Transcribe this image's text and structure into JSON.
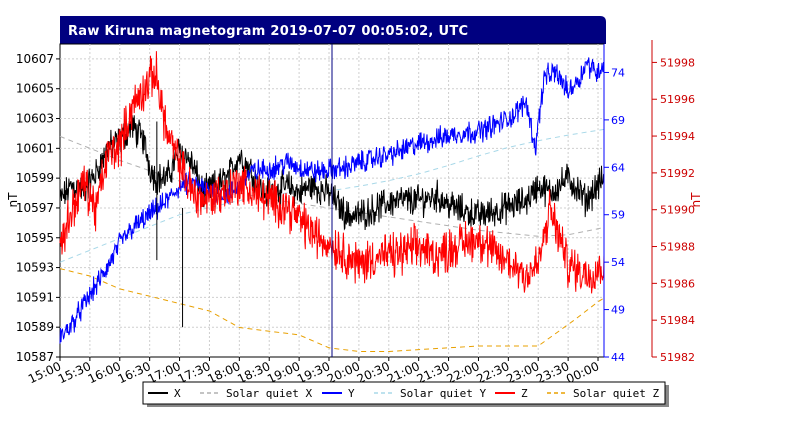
{
  "chart_data": {
    "type": "line",
    "title": "Raw Kiruna magnetogram 2019-07-07 00:05:02, UTC",
    "colors": {
      "title_bar": "#000080",
      "x": "#000000",
      "y": "#0000ff",
      "z": "#ff0000",
      "quiet_x": "#b0b0b0",
      "quiet_y": "#a8d8e8",
      "quiet_z": "#e8a000",
      "blue_axis": "#0000ff",
      "red_axis": "#cc0000"
    },
    "x_axis": {
      "ticks": [
        "15:00",
        "15:30",
        "16:00",
        "16:30",
        "17:00",
        "17:30",
        "18:00",
        "18:30",
        "19:00",
        "19:30",
        "20:00",
        "20:30",
        "21:00",
        "21:30",
        "22:00",
        "22:30",
        "23:00",
        "23:30",
        "00:00"
      ],
      "range_hours": [
        15.0,
        24.1
      ]
    },
    "left_axis": {
      "label": "nT",
      "ticks": [
        "10587",
        "10589",
        "10591",
        "10593",
        "10595",
        "10597",
        "10599",
        "10601",
        "10603",
        "10605",
        "10607"
      ],
      "range": [
        10587,
        10608
      ]
    },
    "mid_axis": {
      "ticks": [
        "44",
        "49",
        "54",
        "59",
        "64",
        "69",
        "74"
      ],
      "range": [
        44,
        77
      ]
    },
    "right_axis": {
      "label": "nT",
      "ticks": [
        "51982",
        "51984",
        "51986",
        "51988",
        "51990",
        "51992",
        "51994",
        "51996",
        "51998"
      ],
      "range": [
        51982,
        51999
      ]
    },
    "legend": [
      "X",
      "Solar quiet X",
      "Y",
      "Solar quiet Y",
      "Z",
      "Solar quiet Z"
    ],
    "series": [
      {
        "name": "X",
        "axis": "left",
        "noise": 0.8,
        "x": [
          15.0,
          15.2,
          15.4,
          15.6,
          15.8,
          16.0,
          16.2,
          16.4,
          16.5,
          16.6,
          16.8,
          17.0,
          17.2,
          17.4,
          17.6,
          17.8,
          18.0,
          18.2,
          18.4,
          18.6,
          18.8,
          19.0,
          19.2,
          19.5,
          19.8,
          20.0,
          20.3,
          20.6,
          21.0,
          21.3,
          21.6,
          22.0,
          22.3,
          22.6,
          22.8,
          23.0,
          23.2,
          23.5,
          23.8,
          24.1
        ],
        "values": [
          10597.5,
          10598.5,
          10598.2,
          10599.3,
          10601.0,
          10601.5,
          10602.5,
          10601.5,
          10599.8,
          10599.0,
          10599.0,
          10601.0,
          10600.0,
          10598.0,
          10598.5,
          10599.0,
          10600.5,
          10599.5,
          10598.0,
          10598.2,
          10598.5,
          10598.0,
          10598.5,
          10598.0,
          10596.5,
          10596.5,
          10597.0,
          10597.5,
          10597.5,
          10597.8,
          10597.0,
          10596.5,
          10596.8,
          10597.2,
          10597.5,
          10598.5,
          10598.0,
          10599.0,
          10597.5,
          10599.0
        ]
      },
      {
        "name": "Y",
        "axis": "mid",
        "noise": 0.9,
        "x": [
          15.0,
          15.2,
          15.5,
          15.8,
          16.0,
          16.2,
          16.5,
          16.8,
          17.0,
          17.2,
          17.5,
          17.8,
          18.0,
          18.2,
          18.5,
          18.8,
          19.0,
          19.3,
          19.6,
          19.8,
          20.0,
          20.3,
          20.6,
          21.0,
          21.3,
          21.6,
          22.0,
          22.3,
          22.6,
          22.8,
          22.95,
          23.1,
          23.3,
          23.5,
          23.7,
          23.8,
          24.0,
          24.1
        ],
        "values": [
          46.0,
          47.5,
          50.5,
          53.5,
          56.0,
          57.5,
          59.0,
          60.5,
          62.0,
          62.3,
          61.5,
          61.0,
          62.0,
          63.5,
          63.8,
          64.5,
          64.0,
          63.5,
          63.8,
          64.0,
          64.5,
          65.0,
          65.5,
          66.5,
          67.0,
          67.5,
          67.8,
          68.5,
          69.5,
          71.0,
          66.0,
          73.5,
          74.0,
          72.0,
          73.5,
          75.0,
          74.0,
          75.0
        ]
      },
      {
        "name": "Z",
        "axis": "right",
        "noise": 0.9,
        "x": [
          15.0,
          15.2,
          15.4,
          15.6,
          15.8,
          16.0,
          16.2,
          16.4,
          16.6,
          16.8,
          17.0,
          17.2,
          17.4,
          17.6,
          17.8,
          18.0,
          18.2,
          18.5,
          18.8,
          19.0,
          19.3,
          19.6,
          19.8,
          20.0,
          20.3,
          20.6,
          21.0,
          21.3,
          21.6,
          22.0,
          22.3,
          22.6,
          22.8,
          23.0,
          23.2,
          23.5,
          23.8,
          24.1
        ],
        "values": [
          51988.0,
          51990.0,
          51991.5,
          51990.0,
          51993.0,
          51993.5,
          51995.5,
          51996.5,
          51997.5,
          51994.0,
          51992.5,
          51991.0,
          51990.5,
          51990.8,
          51991.0,
          51991.5,
          51991.0,
          51990.5,
          51990.2,
          51989.5,
          51988.5,
          51988.0,
          51987.5,
          51987.0,
          51987.5,
          51987.5,
          51988.0,
          51987.5,
          51988.0,
          51988.5,
          51987.5,
          51987.0,
          51986.5,
          51987.0,
          51990.0,
          51987.0,
          51986.5,
          51987.0
        ]
      },
      {
        "name": "Solar quiet X",
        "axis": "left",
        "noise": 0,
        "x": [
          15.0,
          15.5,
          16.0,
          16.5,
          17.0,
          17.5,
          18.0,
          18.5,
          19.0,
          19.5,
          20.0,
          20.5,
          21.0,
          21.5,
          22.0,
          22.5,
          23.0,
          23.5,
          24.0,
          24.1
        ],
        "values": [
          10601.8,
          10601.0,
          10600.2,
          10599.5,
          10598.8,
          10598.3,
          10598.0,
          10597.6,
          10597.3,
          10597.0,
          10596.7,
          10596.4,
          10596.1,
          10595.8,
          10595.5,
          10595.3,
          10595.1,
          10595.2,
          10595.6,
          10595.7
        ]
      },
      {
        "name": "Solar quiet Y",
        "axis": "mid",
        "noise": 0,
        "x": [
          15.0,
          16.0,
          17.0,
          18.0,
          19.0,
          19.5,
          20.0,
          20.5,
          21.0,
          21.5,
          22.0,
          22.5,
          23.0,
          23.5,
          24.0,
          24.1
        ],
        "values": [
          54.0,
          56.5,
          59.0,
          60.5,
          61.5,
          61.5,
          62.0,
          62.6,
          63.3,
          64.2,
          65.2,
          66.1,
          66.8,
          67.4,
          67.9,
          68.0
        ]
      },
      {
        "name": "Solar quiet Z",
        "axis": "right",
        "noise": 0,
        "x": [
          15.0,
          15.5,
          16.0,
          16.5,
          17.0,
          17.5,
          18.0,
          18.5,
          19.0,
          19.5,
          20.0,
          20.5,
          21.0,
          21.5,
          22.0,
          22.5,
          23.0,
          23.3,
          23.6,
          24.0,
          24.1
        ],
        "values": [
          51986.8,
          51986.4,
          51985.7,
          51985.3,
          51984.9,
          51984.5,
          51983.6,
          51983.4,
          51983.2,
          51982.5,
          51982.3,
          51982.3,
          51982.4,
          51982.5,
          51982.6,
          51982.6,
          51982.6,
          51983.3,
          51984.0,
          51985.0,
          51985.2
        ]
      }
    ],
    "markers": [
      {
        "name": "black-marker",
        "axis": "left",
        "x": 19.55,
        "from": 10587,
        "to": 10608,
        "color": "#000080"
      },
      {
        "name": "spike-x",
        "axis": "left",
        "x": 16.62,
        "from": 10593.5,
        "to": 10602.8,
        "color": "#000000"
      },
      {
        "name": "spike-x2",
        "axis": "left",
        "x": 17.05,
        "from": 10589,
        "to": 10597,
        "color": "#000000"
      }
    ],
    "grid": true,
    "legend_position": "bottom-center"
  }
}
